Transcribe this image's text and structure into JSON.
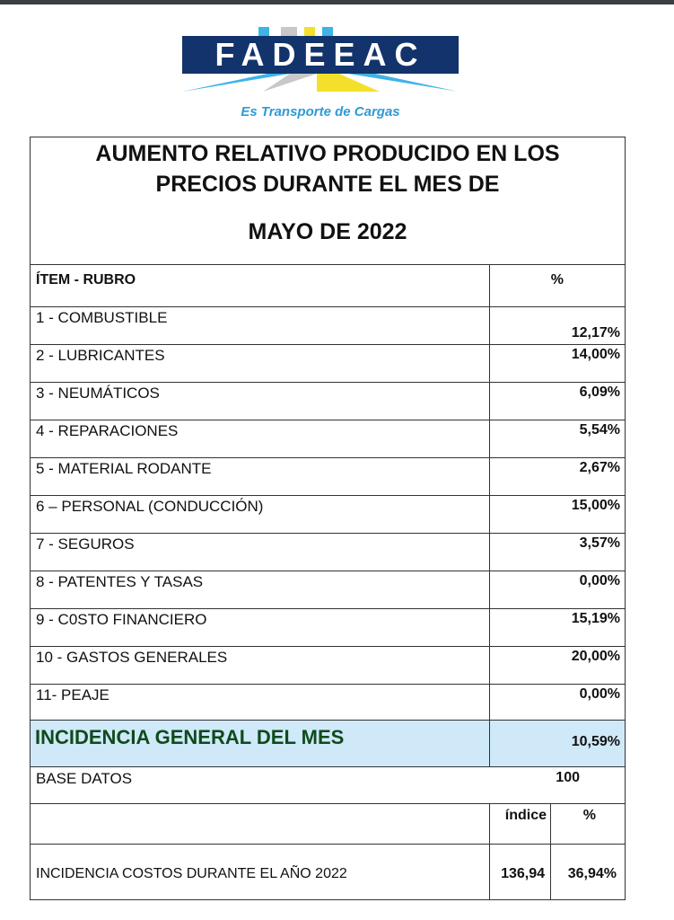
{
  "logo": {
    "name": "FADEEAC",
    "tagline": "Es Transporte de Cargas"
  },
  "title": {
    "line1": "AUMENTO RELATIVO PRODUCIDO EN LOS",
    "line2": "PRECIOS DURANTE EL MES DE",
    "line3": "MAYO DE 2022"
  },
  "header": {
    "item": "ÍTEM - RUBRO",
    "pct": "%"
  },
  "items": [
    {
      "label": "1 - COMBUSTIBLE",
      "value": "12,17%"
    },
    {
      "label": "2 - LUBRICANTES",
      "value": "14,00%"
    },
    {
      "label": "3 - NEUMÁTICOS",
      "value": "6,09%"
    },
    {
      "label": "4 - REPARACIONES",
      "value": "5,54%"
    },
    {
      "label": "5 - MATERIAL RODANTE",
      "value": "2,67%"
    },
    {
      "label": "6 – PERSONAL (CONDUCCIÓN)",
      "value": "15,00%"
    },
    {
      "label": "7 - SEGUROS",
      "value": "3,57%"
    },
    {
      "label": "8 - PATENTES Y TASAS",
      "value": "0,00%"
    },
    {
      "label": "9 - C0STO FINANCIERO",
      "value": "15,19%"
    },
    {
      "label": "10 - GASTOS GENERALES",
      "value": "20,00%"
    },
    {
      "label": "11- PEAJE",
      "value": "0,00%"
    }
  ],
  "incidence": {
    "label": "INCIDENCIA GENERAL DEL MES",
    "value": "10,59%"
  },
  "base": {
    "label": "BASE DATOS",
    "value": "100"
  },
  "annual": {
    "col_index": "índice",
    "col_pct": "%",
    "label": "INCIDENCIA COSTOS DURANTE EL AÑO 2022",
    "index": "136,94",
    "pct": "36,94%"
  },
  "colors": {
    "logo_blue": "#12336b",
    "highlight": "#cfe9f9",
    "green_text": "#0f4a1c"
  }
}
